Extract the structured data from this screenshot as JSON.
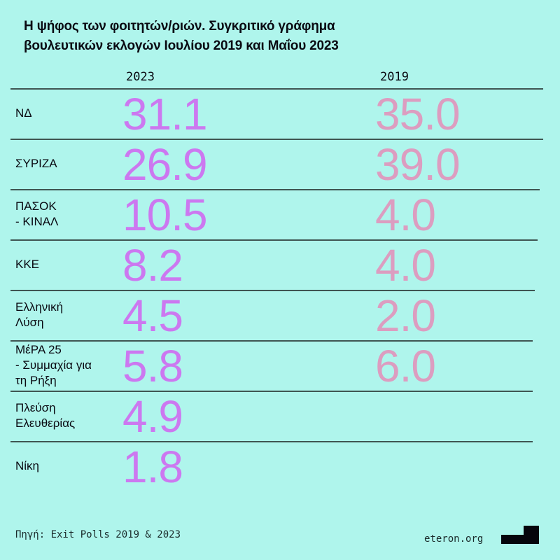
{
  "title": "Η ψήφος των φοιτητών/ριών. Συγκριτικό γράφημα βουλευτικών εκλογών Ιουλίου 2019 και Μαΐου 2023",
  "title_lines": [
    "Η ψήφος των φοιτητών/ριών. Συγκριτικό γράφημα",
    "βουλευτικών εκλογών Ιουλίου 2019 και Μαΐου 2023"
  ],
  "colors": {
    "background": "#aff5ec",
    "y2023": "#cc78f0",
    "y2019": "#dc9dc0"
  },
  "chart_data": {
    "type": "table",
    "columns": [
      "2023",
      "2019"
    ],
    "rows": [
      {
        "party": [
          "ΝΔ"
        ],
        "v2023": "31.1",
        "v2019": "35.0"
      },
      {
        "party": [
          "ΣΥΡΙΖΑ"
        ],
        "v2023": "26.9",
        "v2019": "39.0"
      },
      {
        "party": [
          "ΠΑΣΟΚ",
          "- ΚΙΝΑΛ"
        ],
        "v2023": "10.5",
        "v2019": "4.0"
      },
      {
        "party": [
          "ΚΚΕ"
        ],
        "v2023": "8.2",
        "v2019": "4.0"
      },
      {
        "party": [
          "Ελληνική",
          "Λύση"
        ],
        "v2023": "4.5",
        "v2019": "2.0"
      },
      {
        "party": [
          "ΜέΡΑ 25",
          "- Συμμαχία για",
          "τη Ρήξη"
        ],
        "v2023": "5.8",
        "v2019": "6.0"
      },
      {
        "party": [
          "Πλεύση",
          "Ελευθερίας"
        ],
        "v2023": "4.9",
        "v2019": null
      },
      {
        "party": [
          "Νίκη"
        ],
        "v2023": "1.8",
        "v2019": null
      }
    ]
  },
  "footer": {
    "source": "Πηγή: Exit Polls 2019 & 2023",
    "site": "eteron.org",
    "logo_icon": "eteron-block-logo"
  }
}
